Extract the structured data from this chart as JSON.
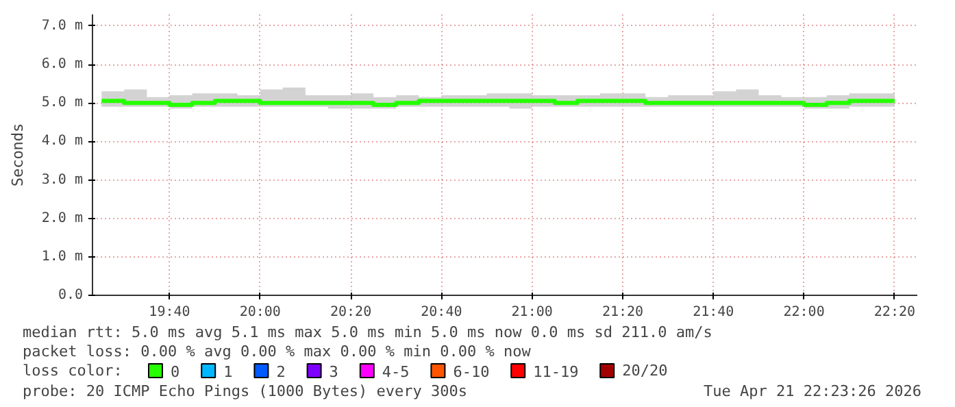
{
  "chart_data": {
    "type": "step",
    "ylabel": "Seconds",
    "legend_title": "loss color:",
    "legend": "bottom",
    "grid": true,
    "line_style": "solid",
    "marker": "none",
    "x": [
      "2026-04-21T19:25",
      "2026-04-21T19:30",
      "2026-04-21T19:35",
      "2026-04-21T19:40",
      "2026-04-21T19:45",
      "2026-04-21T19:50",
      "2026-04-21T19:55",
      "2026-04-21T20:00",
      "2026-04-21T20:05",
      "2026-04-21T20:10",
      "2026-04-21T20:15",
      "2026-04-21T20:20",
      "2026-04-21T20:25",
      "2026-04-21T20:30",
      "2026-04-21T20:35",
      "2026-04-21T20:40",
      "2026-04-21T20:45",
      "2026-04-21T20:50",
      "2026-04-21T20:55",
      "2026-04-21T21:00",
      "2026-04-21T21:05",
      "2026-04-21T21:10",
      "2026-04-21T21:15",
      "2026-04-21T21:20",
      "2026-04-21T21:25",
      "2026-04-21T21:30",
      "2026-04-21T21:35",
      "2026-04-21T21:40",
      "2026-04-21T21:45",
      "2026-04-21T21:50",
      "2026-04-21T21:55",
      "2026-04-21T22:00",
      "2026-04-21T22:05",
      "2026-04-21T22:10",
      "2026-04-21T22:15",
      "2026-04-21T22:20"
    ],
    "xlim": [
      "2026-04-21T19:23",
      "2026-04-21T22:25"
    ],
    "xticks": [
      {
        "value": "2026-04-21T19:40",
        "label": "19:40"
      },
      {
        "value": "2026-04-21T20:00",
        "label": "20:00"
      },
      {
        "value": "2026-04-21T20:20",
        "label": "20:20"
      },
      {
        "value": "2026-04-21T20:40",
        "label": "20:40"
      },
      {
        "value": "2026-04-21T21:00",
        "label": "21:00"
      },
      {
        "value": "2026-04-21T21:20",
        "label": "21:20"
      },
      {
        "value": "2026-04-21T21:40",
        "label": "21:40"
      },
      {
        "value": "2026-04-21T22:00",
        "label": "22:00"
      },
      {
        "value": "2026-04-21T22:20",
        "label": "22:20"
      }
    ],
    "ylim": [
      0,
      7.3
    ],
    "yticks": [
      {
        "value": 0,
        "label": "0.0"
      },
      {
        "value": 1,
        "label": "1.0 m"
      },
      {
        "value": 2,
        "label": "2.0 m"
      },
      {
        "value": 3,
        "label": "3.0 m"
      },
      {
        "value": 4,
        "label": "4.0 m"
      },
      {
        "value": 5,
        "label": "5.0 m"
      },
      {
        "value": 6,
        "label": "6.0 m"
      },
      {
        "value": 7,
        "label": "7.0 m"
      }
    ],
    "series": [
      {
        "name": "0",
        "color": "#26ff00",
        "values": [
          5.05,
          5.0,
          5.0,
          4.95,
          5.0,
          5.05,
          5.05,
          5.0,
          5.0,
          5.0,
          5.0,
          5.0,
          4.95,
          5.0,
          5.05,
          5.05,
          5.05,
          5.05,
          5.05,
          5.05,
          5.0,
          5.05,
          5.05,
          5.05,
          5.0,
          5.0,
          5.0,
          5.0,
          5.0,
          5.0,
          5.0,
          4.95,
          5.0,
          5.05,
          5.05,
          5.05
        ],
        "lower": [
          4.9,
          4.9,
          4.9,
          4.85,
          4.9,
          4.9,
          4.9,
          4.9,
          4.9,
          4.9,
          4.85,
          4.85,
          4.85,
          4.9,
          4.9,
          4.9,
          4.9,
          4.9,
          4.85,
          4.9,
          4.9,
          4.9,
          4.9,
          4.9,
          4.9,
          4.9,
          4.9,
          4.9,
          4.9,
          4.9,
          4.9,
          4.85,
          4.85,
          4.9,
          4.9,
          4.9
        ],
        "upper": [
          5.3,
          5.35,
          5.15,
          5.2,
          5.25,
          5.25,
          5.2,
          5.35,
          5.4,
          5.2,
          5.2,
          5.25,
          5.15,
          5.2,
          5.15,
          5.2,
          5.2,
          5.25,
          5.25,
          5.2,
          5.2,
          5.2,
          5.25,
          5.25,
          5.15,
          5.2,
          5.2,
          5.3,
          5.35,
          5.2,
          5.15,
          5.15,
          5.2,
          5.25,
          5.25,
          5.25
        ]
      },
      {
        "name": "1",
        "color": "#00b8ff",
        "values": [
          null,
          null,
          null,
          null,
          null,
          null,
          null,
          null,
          null,
          null,
          null,
          null,
          null,
          null,
          null,
          null,
          null,
          null,
          null,
          null,
          null,
          null,
          null,
          null,
          null,
          null,
          null,
          null,
          null,
          null,
          null,
          null,
          null,
          null,
          null,
          null
        ]
      },
      {
        "name": "2",
        "color": "#0059ff",
        "values": [
          null,
          null,
          null,
          null,
          null,
          null,
          null,
          null,
          null,
          null,
          null,
          null,
          null,
          null,
          null,
          null,
          null,
          null,
          null,
          null,
          null,
          null,
          null,
          null,
          null,
          null,
          null,
          null,
          null,
          null,
          null,
          null,
          null,
          null,
          null,
          null
        ]
      },
      {
        "name": "3",
        "color": "#7e00ff",
        "values": [
          null,
          null,
          null,
          null,
          null,
          null,
          null,
          null,
          null,
          null,
          null,
          null,
          null,
          null,
          null,
          null,
          null,
          null,
          null,
          null,
          null,
          null,
          null,
          null,
          null,
          null,
          null,
          null,
          null,
          null,
          null,
          null,
          null,
          null,
          null,
          null
        ]
      },
      {
        "name": "4-5",
        "color": "#ff00ff",
        "values": [
          null,
          null,
          null,
          null,
          null,
          null,
          null,
          null,
          null,
          null,
          null,
          null,
          null,
          null,
          null,
          null,
          null,
          null,
          null,
          null,
          null,
          null,
          null,
          null,
          null,
          null,
          null,
          null,
          null,
          null,
          null,
          null,
          null,
          null,
          null,
          null
        ]
      },
      {
        "name": "6-10",
        "color": "#ff5500",
        "values": [
          null,
          null,
          null,
          null,
          null,
          null,
          null,
          null,
          null,
          null,
          null,
          null,
          null,
          null,
          null,
          null,
          null,
          null,
          null,
          null,
          null,
          null,
          null,
          null,
          null,
          null,
          null,
          null,
          null,
          null,
          null,
          null,
          null,
          null,
          null,
          null
        ]
      },
      {
        "name": "11-19",
        "color": "#ff0000",
        "values": [
          null,
          null,
          null,
          null,
          null,
          null,
          null,
          null,
          null,
          null,
          null,
          null,
          null,
          null,
          null,
          null,
          null,
          null,
          null,
          null,
          null,
          null,
          null,
          null,
          null,
          null,
          null,
          null,
          null,
          null,
          null,
          null,
          null,
          null,
          null,
          null
        ]
      },
      {
        "name": "20/20",
        "color": "#a10000",
        "values": [
          null,
          null,
          null,
          null,
          null,
          null,
          null,
          null,
          null,
          null,
          null,
          null,
          null,
          null,
          null,
          null,
          null,
          null,
          null,
          null,
          null,
          null,
          null,
          null,
          null,
          null,
          null,
          null,
          null,
          null,
          null,
          null,
          null,
          null,
          null,
          null
        ]
      }
    ],
    "annotations": [
      "median rtt:  5.0 ms avg  5.1 ms max  5.0 ms min  5.0 ms now  0.0 ms sd  211.0   am/s",
      "packet loss: 0.00 % avg  0.00 % max  0.00 % min  0.00 % now",
      "probe:       20 ICMP Echo Pings (1000 Bytes) every 300s",
      "Tue Apr 21 22:23:26 2026"
    ]
  }
}
